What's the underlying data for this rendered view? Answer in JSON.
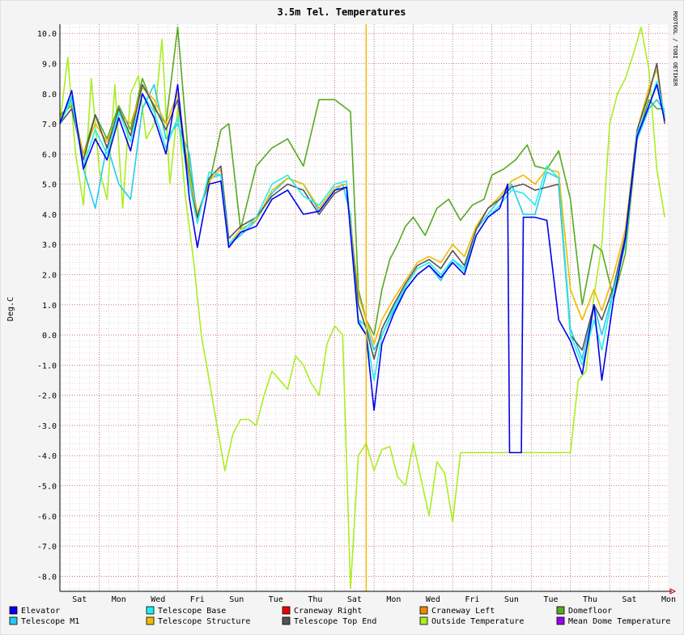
{
  "chart_data": {
    "type": "line",
    "title": "3.5m Tel. Temperatures",
    "ylabel": "Deg.C",
    "watermark": "RRDTOOL / TOBI OETIKER",
    "ylim": [
      -8.5,
      10.3
    ],
    "y_ticks": [
      10.0,
      9.0,
      8.0,
      7.0,
      6.0,
      5.0,
      4.0,
      3.0,
      2.0,
      1.0,
      0.0,
      -1.0,
      -2.0,
      -3.0,
      -4.0,
      -5.0,
      -6.0,
      -7.0,
      -8.0
    ],
    "y_tick_labels": [
      "10.0",
      "9.0",
      "8.0",
      "7.0",
      "6.0",
      "5.0",
      "4.0",
      "3.0",
      "2.0",
      "1.0",
      "0.0",
      "-1.0",
      "-2.0",
      "-3.0",
      "-4.0",
      "-5.0",
      "-6.0",
      "-7.0",
      "-8.0"
    ],
    "x_unit": "day",
    "xlim": [
      0,
      15.5
    ],
    "x_ticks": [
      0.5,
      1.5,
      2.5,
      3.5,
      4.5,
      5.5,
      6.5,
      7.5,
      8.5,
      9.5,
      10.5,
      11.5,
      12.5,
      13.5,
      14.5,
      15.5
    ],
    "x_tick_labels": [
      "Sat",
      "Mon",
      "Wed",
      "Fri",
      "Sun",
      "Tue",
      "Thu",
      "Sat",
      "Mon",
      "Wed",
      "Fri",
      "Sun",
      "Tue",
      "Thu",
      "Sat",
      "Mon"
    ],
    "grid": true,
    "legend_position": "bottom",
    "legend": [
      {
        "name": "Elevator",
        "color": "#0000ee"
      },
      {
        "name": "Telescope Base",
        "color": "#22eeee"
      },
      {
        "name": "Craneway Right",
        "color": "#ee0000"
      },
      {
        "name": "Craneway Left",
        "color": "#ee8800"
      },
      {
        "name": "Domefloor",
        "color": "#55aa22"
      },
      {
        "name": "Telescope M1",
        "color": "#22ccee"
      },
      {
        "name": "Telescope Structure",
        "color": "#eebb00"
      },
      {
        "name": "Telescope Top End",
        "color": "#555555"
      },
      {
        "name": "Outside Temperature",
        "color": "#aaee22"
      },
      {
        "name": "Mean Dome Temperature",
        "color": "#9900ee"
      }
    ],
    "series": [
      {
        "name": "Outside Temperature",
        "color": "#aaee22",
        "x": [
          0,
          0.2,
          0.4,
          0.6,
          0.8,
          1.0,
          1.2,
          1.4,
          1.6,
          1.8,
          2.0,
          2.2,
          2.4,
          2.6,
          2.8,
          3.0,
          3.2,
          3.4,
          3.6,
          3.8,
          4.0,
          4.2,
          4.4,
          4.6,
          4.8,
          5.0,
          5.2,
          5.4,
          5.6,
          5.8,
          6.0,
          6.2,
          6.4,
          6.6,
          6.8,
          7.0,
          7.2,
          7.4,
          7.6,
          7.8,
          8.0,
          8.2,
          8.4,
          8.6,
          8.8,
          9.0,
          9.2,
          9.4,
          9.6,
          9.8,
          10.0,
          10.2,
          10.4,
          10.6,
          10.8,
          11.0,
          11.2,
          11.4,
          11.6,
          11.8,
          12.0,
          12.2,
          12.4,
          12.6,
          12.8,
          13.0,
          13.2,
          13.4,
          13.6,
          13.8,
          14.0,
          14.2,
          14.4,
          14.6,
          14.8,
          15.0,
          15.2,
          15.4
        ],
        "y": [
          7.0,
          9.2,
          6.0,
          4.3,
          8.5,
          5.5,
          4.5,
          8.3,
          4.2,
          8.0,
          8.6,
          6.5,
          7.0,
          9.8,
          5.0,
          7.5,
          4.5,
          2.5,
          0.0,
          -1.5,
          -3.0,
          -4.5,
          -3.3,
          -2.8,
          -2.8,
          -3.0,
          -2.0,
          -1.2,
          -1.5,
          -1.8,
          -0.7,
          -1.0,
          -1.6,
          -2.0,
          -0.3,
          0.3,
          0.0,
          -8.4,
          -4.0,
          -3.6,
          -4.5,
          -3.8,
          -3.7,
          -4.7,
          -5.0,
          -3.6,
          -4.8,
          -6.0,
          -4.2,
          -4.6,
          -6.2,
          -3.9,
          -3.9,
          -3.9,
          -3.9,
          -3.9,
          -3.9,
          -3.9,
          -3.9,
          -3.9,
          -3.9,
          -3.9,
          -3.9,
          -3.9,
          -3.9,
          -3.9,
          -1.5,
          -1.2,
          1.3,
          3.0,
          7.0,
          8.0,
          8.5,
          9.3,
          10.2,
          8.8,
          5.5,
          3.9
        ]
      },
      {
        "name": "Domefloor",
        "color": "#55aa22",
        "x": [
          0,
          0.3,
          0.6,
          0.9,
          1.2,
          1.5,
          1.8,
          2.1,
          2.4,
          2.7,
          3.0,
          3.3,
          3.5,
          3.8,
          4.1,
          4.3,
          4.6,
          5.0,
          5.4,
          5.8,
          6.2,
          6.6,
          7.0,
          7.4,
          7.6,
          7.8,
          8.0,
          8.2,
          8.4,
          8.6,
          8.8,
          9.0,
          9.3,
          9.6,
          9.9,
          10.2,
          10.5,
          10.8,
          11.0,
          11.3,
          11.6,
          11.9,
          12.1,
          12.4,
          12.7,
          13.0,
          13.3,
          13.6,
          13.8,
          14.1,
          14.4,
          14.7,
          15.0,
          15.2,
          15.4
        ],
        "y": [
          7.3,
          7.6,
          6.0,
          7.3,
          6.5,
          7.6,
          6.8,
          8.5,
          7.5,
          7.0,
          10.2,
          5.5,
          4.0,
          5.0,
          6.8,
          7.0,
          3.5,
          5.6,
          6.2,
          6.5,
          5.6,
          7.8,
          7.8,
          7.4,
          1.5,
          0.5,
          0.0,
          1.5,
          2.5,
          3.0,
          3.6,
          3.9,
          3.3,
          4.2,
          4.5,
          3.8,
          4.3,
          4.5,
          5.3,
          5.5,
          5.8,
          6.3,
          5.6,
          5.5,
          6.1,
          4.5,
          1.0,
          3.0,
          2.8,
          1.2,
          2.7,
          6.6,
          7.8,
          7.5,
          7.5
        ]
      },
      {
        "name": "Telescope M1",
        "color": "#22ccee",
        "x": [
          0,
          0.3,
          0.6,
          0.9,
          1.2,
          1.5,
          1.8,
          2.1,
          2.4,
          2.7,
          3.0,
          3.3,
          3.5,
          3.8,
          4.1,
          4.3,
          4.6,
          5.0,
          5.4,
          5.8,
          6.2,
          6.6,
          7.0,
          7.2,
          7.4,
          7.6,
          7.8,
          8.0,
          8.2,
          8.5,
          8.8,
          9.1,
          9.4,
          9.7,
          10.0,
          10.3,
          10.6,
          10.9,
          11.2,
          11.5,
          11.8,
          12.1,
          12.4,
          12.7,
          13.0,
          13.3,
          13.6,
          13.8,
          14.1,
          14.4,
          14.7,
          15.0,
          15.2,
          15.4
        ],
        "y": [
          7.1,
          7.9,
          5.5,
          4.2,
          6.3,
          5.0,
          4.5,
          7.5,
          8.3,
          6.5,
          7.0,
          6.0,
          3.8,
          5.2,
          5.3,
          3.0,
          3.3,
          3.8,
          4.7,
          5.2,
          5.0,
          4.1,
          4.8,
          5.0,
          4.0,
          0.5,
          0.3,
          -0.5,
          0.0,
          0.8,
          1.5,
          2.0,
          2.3,
          1.8,
          2.5,
          2.2,
          3.5,
          4.0,
          4.5,
          5.0,
          4.0,
          4.0,
          5.4,
          5.2,
          0.2,
          -0.8,
          1.0,
          0.0,
          1.5,
          3.2,
          6.5,
          7.5,
          7.8,
          7.4
        ]
      },
      {
        "name": "Telescope Structure",
        "color": "#eebb00",
        "x": [
          0,
          0.3,
          0.6,
          0.9,
          1.2,
          1.5,
          1.8,
          2.1,
          2.4,
          2.7,
          3.0,
          3.3,
          3.5,
          3.8,
          4.1,
          4.3,
          4.6,
          5.0,
          5.4,
          5.8,
          6.2,
          6.6,
          7.0,
          7.3,
          7.6,
          7.8,
          8.0,
          8.2,
          8.5,
          8.8,
          9.1,
          9.4,
          9.7,
          10.0,
          10.3,
          10.6,
          10.9,
          11.2,
          11.5,
          11.8,
          12.1,
          12.4,
          12.7,
          13.0,
          13.3,
          13.6,
          13.8,
          14.1,
          14.4,
          14.7,
          15.0,
          15.2,
          15.4
        ],
        "y": [
          7.2,
          7.7,
          6.0,
          7.0,
          6.4,
          7.3,
          7.0,
          8.2,
          7.8,
          7.0,
          8.0,
          5.2,
          4.0,
          5.1,
          5.5,
          3.0,
          3.5,
          3.8,
          4.8,
          5.2,
          5.0,
          4.2,
          4.9,
          5.0,
          1.3,
          0.5,
          -0.3,
          0.5,
          1.2,
          1.8,
          2.4,
          2.6,
          2.4,
          3.0,
          2.6,
          3.6,
          4.2,
          4.6,
          5.1,
          5.3,
          5.0,
          5.5,
          5.4,
          1.5,
          0.5,
          1.5,
          0.8,
          2.0,
          3.5,
          6.8,
          8.2,
          8.8,
          7.2
        ]
      },
      {
        "name": "Telescope Top End",
        "color": "#555555",
        "x": [
          0,
          0.3,
          0.6,
          0.9,
          1.2,
          1.5,
          1.8,
          2.1,
          2.4,
          2.7,
          3.0,
          3.3,
          3.5,
          3.8,
          4.1,
          4.3,
          4.6,
          5.0,
          5.4,
          5.8,
          6.2,
          6.6,
          7.0,
          7.3,
          7.6,
          7.8,
          8.0,
          8.2,
          8.5,
          8.8,
          9.1,
          9.4,
          9.7,
          10.0,
          10.3,
          10.6,
          10.9,
          11.2,
          11.5,
          11.8,
          12.1,
          12.4,
          12.7,
          13.0,
          13.3,
          13.6,
          13.8,
          14.1,
          14.4,
          14.7,
          15.0,
          15.2,
          15.4
        ],
        "y": [
          7.0,
          7.5,
          5.8,
          7.3,
          6.2,
          7.5,
          6.6,
          8.3,
          7.6,
          6.8,
          7.8,
          5.0,
          3.9,
          5.2,
          5.6,
          3.2,
          3.6,
          3.9,
          4.6,
          5.0,
          4.8,
          4.0,
          4.7,
          4.9,
          1.0,
          0.2,
          -0.8,
          0.2,
          1.0,
          1.7,
          2.3,
          2.5,
          2.2,
          2.8,
          2.3,
          3.5,
          4.2,
          4.5,
          4.9,
          5.0,
          4.8,
          4.9,
          5.0,
          0.0,
          -0.5,
          1.0,
          0.5,
          1.6,
          3.3,
          6.8,
          8.0,
          9.0,
          7.0
        ]
      },
      {
        "name": "Telescope Base",
        "color": "#22eeee",
        "x": [
          0,
          0.3,
          0.6,
          0.9,
          1.2,
          1.5,
          1.8,
          2.1,
          2.4,
          2.7,
          3.0,
          3.3,
          3.5,
          3.8,
          4.1,
          4.3,
          4.6,
          5.0,
          5.4,
          5.8,
          6.2,
          6.6,
          7.0,
          7.3,
          7.6,
          7.8,
          8.0,
          8.2,
          8.5,
          8.8,
          9.1,
          9.4,
          9.7,
          10.0,
          10.3,
          10.6,
          10.9,
          11.2,
          11.5,
          11.8,
          12.1,
          12.4,
          12.7,
          13.0,
          13.3,
          13.6,
          13.8,
          14.1,
          14.4,
          14.7,
          15.0,
          15.2,
          15.4
        ],
        "y": [
          7.0,
          7.8,
          5.6,
          6.8,
          6.0,
          7.4,
          6.4,
          8.0,
          7.4,
          6.2,
          7.2,
          5.0,
          3.7,
          5.4,
          5.3,
          3.0,
          3.4,
          3.9,
          5.0,
          5.3,
          4.6,
          4.3,
          5.0,
          5.1,
          0.5,
          0.0,
          -1.5,
          0.0,
          0.9,
          1.6,
          2.2,
          2.4,
          2.0,
          2.5,
          2.1,
          3.3,
          3.9,
          4.3,
          4.8,
          4.7,
          4.3,
          5.6,
          5.2,
          0.0,
          -1.0,
          0.5,
          -0.5,
          1.5,
          3.0,
          6.7,
          7.6,
          8.4,
          7.3
        ]
      },
      {
        "name": "Elevator",
        "color": "#0000ee",
        "x": [
          0,
          0.3,
          0.6,
          0.9,
          1.2,
          1.5,
          1.8,
          2.1,
          2.4,
          2.7,
          3.0,
          3.3,
          3.5,
          3.8,
          4.1,
          4.3,
          4.6,
          5.0,
          5.4,
          5.8,
          6.2,
          6.6,
          7.0,
          7.3,
          7.6,
          7.8,
          8.0,
          8.2,
          8.5,
          8.8,
          9.1,
          9.4,
          9.7,
          10.0,
          10.3,
          10.6,
          10.9,
          11.2,
          11.4,
          11.45,
          11.75,
          11.8,
          12.1,
          12.4,
          12.7,
          13.0,
          13.3,
          13.6,
          13.8,
          14.1,
          14.4,
          14.7,
          15.0,
          15.2,
          15.4
        ],
        "y": [
          7.0,
          8.1,
          5.5,
          6.5,
          5.8,
          7.2,
          6.1,
          8.0,
          7.2,
          6.0,
          8.3,
          4.5,
          2.9,
          5.0,
          5.1,
          2.9,
          3.4,
          3.6,
          4.5,
          4.8,
          4.0,
          4.1,
          4.8,
          4.9,
          0.4,
          0.0,
          -2.5,
          -0.3,
          0.7,
          1.5,
          2.0,
          2.3,
          1.9,
          2.4,
          2.0,
          3.3,
          3.9,
          4.2,
          5.0,
          -3.9,
          -3.9,
          3.9,
          3.9,
          3.8,
          0.5,
          -0.2,
          -1.3,
          1.0,
          -1.5,
          1.2,
          3.2,
          6.6,
          7.6,
          8.3,
          7.1
        ]
      }
    ],
    "vertical_markers": [
      {
        "x": 7.8,
        "color": "#eebb00"
      }
    ]
  }
}
